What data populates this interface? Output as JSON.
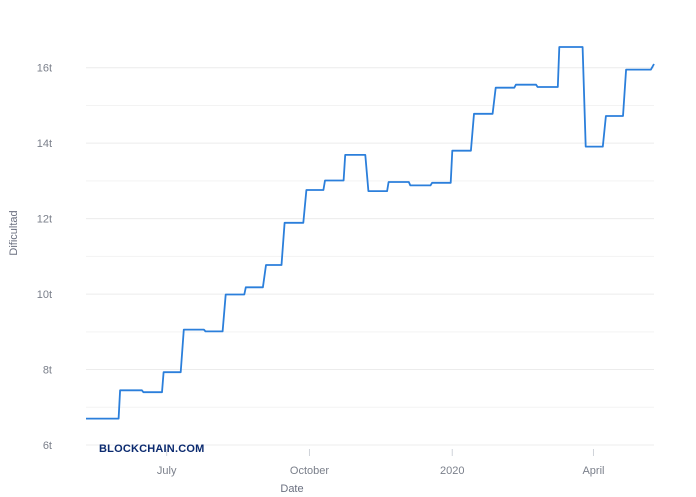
{
  "chart_data": {
    "type": "line",
    "title": "",
    "xlabel": "Date",
    "ylabel": "Dificultad",
    "watermark": "BLOCKCHAIN.COM",
    "line_color": "#2b7fdb",
    "grid": true,
    "grid_color": "#ececec",
    "ylim": [
      6,
      17
    ],
    "y_ticks": [
      {
        "value": 6,
        "label": "6t"
      },
      {
        "value": 8,
        "label": "8t"
      },
      {
        "value": 10,
        "label": "10t"
      },
      {
        "value": 12,
        "label": "12t"
      },
      {
        "value": 14,
        "label": "14t"
      },
      {
        "value": 16,
        "label": "16t"
      }
    ],
    "xlim": [
      "2019-05-10",
      "2020-05-10"
    ],
    "x_ticks": [
      {
        "date": "2019-07-01",
        "label": "July"
      },
      {
        "date": "2019-10-01",
        "label": "October"
      },
      {
        "date": "2020-01-01",
        "label": "2020"
      },
      {
        "date": "2020-04-01",
        "label": "April"
      }
    ],
    "series": [
      {
        "points": [
          [
            "2019-05-10",
            6.7
          ],
          [
            "2019-05-31",
            6.7
          ],
          [
            "2019-06-01",
            7.45
          ],
          [
            "2019-06-15",
            7.45
          ],
          [
            "2019-06-16",
            7.4
          ],
          [
            "2019-06-28",
            7.4
          ],
          [
            "2019-06-29",
            7.93
          ],
          [
            "2019-07-10",
            7.93
          ],
          [
            "2019-07-12",
            9.06
          ],
          [
            "2019-07-25",
            9.06
          ],
          [
            "2019-07-26",
            9.01
          ],
          [
            "2019-08-06",
            9.01
          ],
          [
            "2019-08-08",
            9.99
          ],
          [
            "2019-08-20",
            9.99
          ],
          [
            "2019-08-21",
            10.18
          ],
          [
            "2019-09-01",
            10.18
          ],
          [
            "2019-09-03",
            10.77
          ],
          [
            "2019-09-13",
            10.77
          ],
          [
            "2019-09-15",
            11.89
          ],
          [
            "2019-09-27",
            11.89
          ],
          [
            "2019-09-29",
            12.76
          ],
          [
            "2019-10-10",
            12.76
          ],
          [
            "2019-10-11",
            13.01
          ],
          [
            "2019-10-23",
            13.01
          ],
          [
            "2019-10-24",
            13.69
          ],
          [
            "2019-11-06",
            13.69
          ],
          [
            "2019-11-08",
            12.73
          ],
          [
            "2019-11-20",
            12.73
          ],
          [
            "2019-11-21",
            12.97
          ],
          [
            "2019-12-04",
            12.97
          ],
          [
            "2019-12-05",
            12.88
          ],
          [
            "2019-12-18",
            12.88
          ],
          [
            "2019-12-19",
            12.95
          ],
          [
            "2019-12-31",
            12.95
          ],
          [
            "2020-01-01",
            13.8
          ],
          [
            "2020-01-13",
            13.8
          ],
          [
            "2020-01-15",
            14.78
          ],
          [
            "2020-01-27",
            14.78
          ],
          [
            "2020-01-29",
            15.47
          ],
          [
            "2020-02-10",
            15.47
          ],
          [
            "2020-02-11",
            15.55
          ],
          [
            "2020-02-24",
            15.55
          ],
          [
            "2020-02-25",
            15.49
          ],
          [
            "2020-03-09",
            15.49
          ],
          [
            "2020-03-10",
            16.55
          ],
          [
            "2020-03-25",
            16.55
          ],
          [
            "2020-03-27",
            13.91
          ],
          [
            "2020-04-07",
            13.91
          ],
          [
            "2020-04-09",
            14.72
          ],
          [
            "2020-04-20",
            14.72
          ],
          [
            "2020-04-22",
            15.95
          ],
          [
            "2020-05-08",
            15.95
          ],
          [
            "2020-05-10",
            16.1
          ]
        ]
      }
    ]
  }
}
